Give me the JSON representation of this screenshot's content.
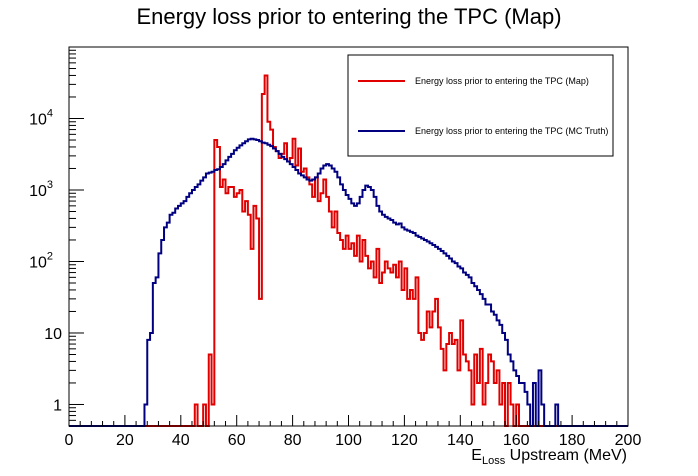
{
  "chart_data": {
    "type": "histogram",
    "title": "Energy loss prior to entering the TPC (Map)",
    "xlabel": {
      "base": "E",
      "sub": "Loss",
      "rest": " Upstream (MeV)"
    },
    "ylabel": "",
    "xlim": [
      0,
      200
    ],
    "ylim": [
      0.5,
      100000
    ],
    "yscale": "log",
    "grid": false,
    "legend_position": "top-right",
    "x_ticks": [
      0,
      20,
      40,
      60,
      80,
      100,
      120,
      140,
      160,
      180,
      200
    ],
    "y_ticks": [
      {
        "value": 1,
        "label": "1",
        "exp": ""
      },
      {
        "value": 10,
        "label": "10",
        "exp": ""
      },
      {
        "value": 100,
        "label": "10",
        "exp": "2"
      },
      {
        "value": 1000,
        "label": "10",
        "exp": "3"
      },
      {
        "value": 10000,
        "label": "10",
        "exp": "4"
      }
    ],
    "bin_width": 1,
    "series": [
      {
        "name": "Energy loss prior to entering the TPC (Map)",
        "color": "#e00000",
        "points": [
          [
            45,
            1
          ],
          [
            46,
            0
          ],
          [
            47,
            0
          ],
          [
            48,
            1
          ],
          [
            49,
            0
          ],
          [
            50,
            5
          ],
          [
            51,
            1
          ],
          [
            52,
            5000
          ],
          [
            53,
            4000
          ],
          [
            54,
            1100
          ],
          [
            55,
            1400
          ],
          [
            56,
            900
          ],
          [
            57,
            1100
          ],
          [
            58,
            1100
          ],
          [
            59,
            800
          ],
          [
            60,
            900
          ],
          [
            61,
            1000
          ],
          [
            62,
            500
          ],
          [
            63,
            700
          ],
          [
            64,
            450
          ],
          [
            65,
            150
          ],
          [
            66,
            600
          ],
          [
            67,
            400
          ],
          [
            68,
            30
          ],
          [
            69,
            22000
          ],
          [
            70,
            40000
          ],
          [
            71,
            9000
          ],
          [
            72,
            7000
          ],
          [
            73,
            4000
          ],
          [
            74,
            3500
          ],
          [
            75,
            2800
          ],
          [
            76,
            3200
          ],
          [
            77,
            4500
          ],
          [
            78,
            2500
          ],
          [
            79,
            2800
          ],
          [
            80,
            5200
          ],
          [
            81,
            2200
          ],
          [
            82,
            3800
          ],
          [
            83,
            1800
          ],
          [
            84,
            2000
          ],
          [
            85,
            1500
          ],
          [
            86,
            1200
          ],
          [
            87,
            800
          ],
          [
            88,
            1500
          ],
          [
            89,
            700
          ],
          [
            90,
            900
          ],
          [
            91,
            1400
          ],
          [
            92,
            800
          ],
          [
            93,
            500
          ],
          [
            94,
            300
          ],
          [
            95,
            500
          ],
          [
            96,
            250
          ],
          [
            97,
            200
          ],
          [
            98,
            150
          ],
          [
            99,
            230
          ],
          [
            100,
            150
          ],
          [
            101,
            180
          ],
          [
            102,
            120
          ],
          [
            103,
            230
          ],
          [
            104,
            100
          ],
          [
            105,
            200
          ],
          [
            106,
            120
          ],
          [
            107,
            80
          ],
          [
            108,
            100
          ],
          [
            109,
            60
          ],
          [
            110,
            150
          ],
          [
            111,
            50
          ],
          [
            112,
            70
          ],
          [
            113,
            100
          ],
          [
            114,
            80
          ],
          [
            115,
            70
          ],
          [
            116,
            90
          ],
          [
            117,
            60
          ],
          [
            118,
            100
          ],
          [
            119,
            40
          ],
          [
            120,
            80
          ],
          [
            121,
            30
          ],
          [
            122,
            40
          ],
          [
            123,
            30
          ],
          [
            124,
            60
          ],
          [
            125,
            10
          ],
          [
            126,
            8
          ],
          [
            127,
            10
          ],
          [
            128,
            20
          ],
          [
            129,
            12
          ],
          [
            130,
            20
          ],
          [
            131,
            30
          ],
          [
            132,
            12
          ],
          [
            133,
            6
          ],
          [
            134,
            3
          ],
          [
            135,
            7
          ],
          [
            136,
            10
          ],
          [
            137,
            7
          ],
          [
            138,
            8
          ],
          [
            139,
            3
          ],
          [
            140,
            15
          ],
          [
            141,
            5
          ],
          [
            142,
            4
          ],
          [
            143,
            3
          ],
          [
            144,
            1
          ],
          [
            145,
            5
          ],
          [
            146,
            2
          ],
          [
            147,
            6
          ],
          [
            148,
            1
          ],
          [
            149,
            2
          ],
          [
            150,
            5
          ],
          [
            151,
            4
          ],
          [
            152,
            2
          ],
          [
            153,
            3
          ],
          [
            154,
            1
          ],
          [
            155,
            2
          ],
          [
            156,
            0
          ],
          [
            157,
            2
          ],
          [
            158,
            1
          ],
          [
            159,
            0
          ],
          [
            160,
            1
          ]
        ]
      },
      {
        "name": "Energy loss prior to entering the TPC (MC Truth)",
        "color": "#000080",
        "points": [
          [
            27,
            1
          ],
          [
            28,
            8
          ],
          [
            29,
            10
          ],
          [
            30,
            50
          ],
          [
            31,
            60
          ],
          [
            32,
            130
          ],
          [
            33,
            200
          ],
          [
            34,
            300
          ],
          [
            35,
            350
          ],
          [
            36,
            450
          ],
          [
            37,
            480
          ],
          [
            38,
            550
          ],
          [
            39,
            600
          ],
          [
            40,
            650
          ],
          [
            41,
            700
          ],
          [
            42,
            800
          ],
          [
            43,
            900
          ],
          [
            44,
            1000
          ],
          [
            45,
            1100
          ],
          [
            46,
            1200
          ],
          [
            47,
            1350
          ],
          [
            48,
            1500
          ],
          [
            49,
            1700
          ],
          [
            50,
            1750
          ],
          [
            51,
            1800
          ],
          [
            52,
            1900
          ],
          [
            53,
            1950
          ],
          [
            54,
            2100
          ],
          [
            55,
            2300
          ],
          [
            56,
            2600
          ],
          [
            57,
            2900
          ],
          [
            58,
            3200
          ],
          [
            59,
            3600
          ],
          [
            60,
            3900
          ],
          [
            61,
            4200
          ],
          [
            62,
            4500
          ],
          [
            63,
            4800
          ],
          [
            64,
            5100
          ],
          [
            65,
            5200
          ],
          [
            66,
            5100
          ],
          [
            67,
            5000
          ],
          [
            68,
            4800
          ],
          [
            69,
            4600
          ],
          [
            70,
            4500
          ],
          [
            71,
            4300
          ],
          [
            72,
            4100
          ],
          [
            73,
            3800
          ],
          [
            74,
            3500
          ],
          [
            75,
            3200
          ],
          [
            76,
            2900
          ],
          [
            77,
            2700
          ],
          [
            78,
            2500
          ],
          [
            79,
            2300
          ],
          [
            80,
            2100
          ],
          [
            81,
            1900
          ],
          [
            82,
            1700
          ],
          [
            83,
            1600
          ],
          [
            84,
            1500
          ],
          [
            85,
            1400
          ],
          [
            86,
            1350
          ],
          [
            87,
            1400
          ],
          [
            88,
            1500
          ],
          [
            89,
            1700
          ],
          [
            90,
            2000
          ],
          [
            91,
            2200
          ],
          [
            92,
            2300
          ],
          [
            93,
            2200
          ],
          [
            94,
            2000
          ],
          [
            95,
            1800
          ],
          [
            96,
            1500
          ],
          [
            97,
            1200
          ],
          [
            98,
            1000
          ],
          [
            99,
            850
          ],
          [
            100,
            750
          ],
          [
            101,
            650
          ],
          [
            102,
            600
          ],
          [
            103,
            650
          ],
          [
            104,
            800
          ],
          [
            105,
            1000
          ],
          [
            106,
            1150
          ],
          [
            107,
            1100
          ],
          [
            108,
            1000
          ],
          [
            109,
            800
          ],
          [
            110,
            600
          ],
          [
            111,
            500
          ],
          [
            112,
            450
          ],
          [
            113,
            420
          ],
          [
            114,
            400
          ],
          [
            115,
            380
          ],
          [
            116,
            350
          ],
          [
            117,
            330
          ],
          [
            118,
            340
          ],
          [
            119,
            300
          ],
          [
            120,
            280
          ],
          [
            121,
            270
          ],
          [
            122,
            260
          ],
          [
            123,
            250
          ],
          [
            124,
            230
          ],
          [
            125,
            220
          ],
          [
            126,
            210
          ],
          [
            127,
            200
          ],
          [
            128,
            190
          ],
          [
            129,
            180
          ],
          [
            130,
            170
          ],
          [
            131,
            160
          ],
          [
            132,
            150
          ],
          [
            133,
            140
          ],
          [
            134,
            130
          ],
          [
            135,
            120
          ],
          [
            136,
            110
          ],
          [
            137,
            100
          ],
          [
            138,
            95
          ],
          [
            139,
            85
          ],
          [
            140,
            80
          ],
          [
            141,
            70
          ],
          [
            142,
            65
          ],
          [
            143,
            60
          ],
          [
            144,
            50
          ],
          [
            145,
            45
          ],
          [
            146,
            40
          ],
          [
            147,
            35
          ],
          [
            148,
            30
          ],
          [
            149,
            25
          ],
          [
            150,
            25
          ],
          [
            151,
            20
          ],
          [
            152,
            18
          ],
          [
            153,
            15
          ],
          [
            154,
            13
          ],
          [
            155,
            10
          ],
          [
            156,
            8
          ],
          [
            157,
            5
          ],
          [
            158,
            4
          ],
          [
            159,
            3
          ],
          [
            160,
            2.5
          ],
          [
            161,
            2
          ],
          [
            162,
            2
          ],
          [
            163,
            1.5
          ],
          [
            164,
            1
          ],
          [
            165,
            0
          ],
          [
            166,
            2
          ],
          [
            167,
            0
          ],
          [
            168,
            3
          ],
          [
            169,
            1
          ],
          [
            170,
            0
          ],
          [
            171,
            0
          ],
          [
            172,
            0
          ],
          [
            173,
            0
          ],
          [
            174,
            1
          ],
          [
            175,
            0
          ]
        ]
      }
    ]
  }
}
